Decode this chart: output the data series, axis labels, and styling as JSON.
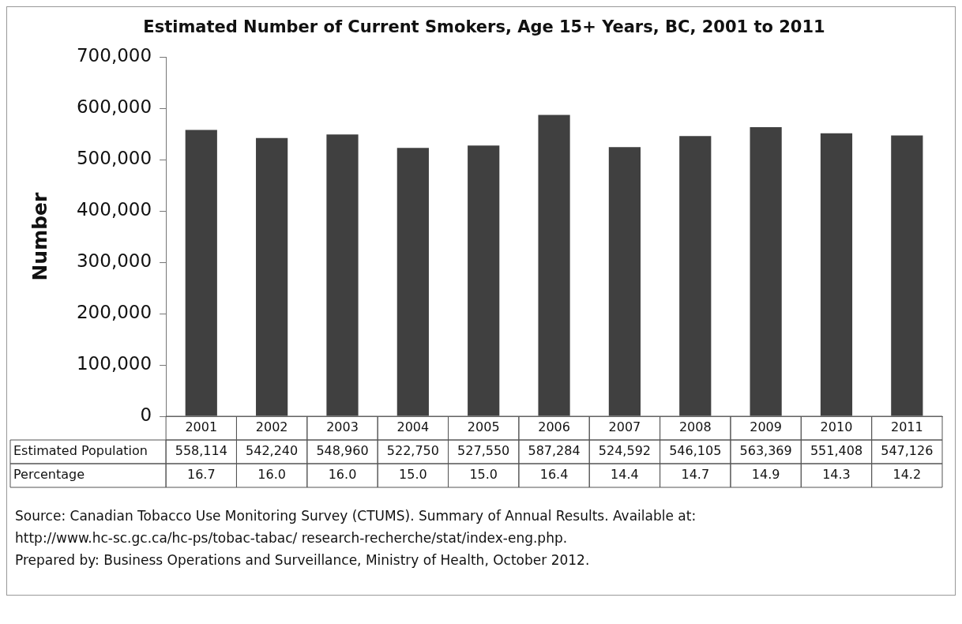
{
  "chart_data": {
    "type": "bar",
    "title": "Estimated Number of Current Smokers, Age 15+ Years, BC, 2001 to 2011",
    "ylabel": "Number",
    "categories": [
      "2001",
      "2002",
      "2003",
      "2004",
      "2005",
      "2006",
      "2007",
      "2008",
      "2009",
      "2010",
      "2011"
    ],
    "series": [
      {
        "name": "Estimated Population",
        "color": "#404040",
        "values": [
          558114,
          542240,
          548960,
          522750,
          527550,
          587284,
          524592,
          546105,
          563369,
          551408,
          547126
        ],
        "value_labels": [
          "558,114",
          "542,240",
          "548,960",
          "522,750",
          "527,550",
          "587,284",
          "524,592",
          "546,105",
          "563,369",
          "551,408",
          "547,126"
        ]
      }
    ],
    "ylim": [
      0,
      700000
    ],
    "yticks": [
      {
        "value": 0,
        "label": "0"
      },
      {
        "value": 100000,
        "label": "100,000"
      },
      {
        "value": 200000,
        "label": "200,000"
      },
      {
        "value": 300000,
        "label": "300,000"
      },
      {
        "value": 400000,
        "label": "400,000"
      },
      {
        "value": 500000,
        "label": "500,000"
      },
      {
        "value": 600000,
        "label": "600,000"
      },
      {
        "value": 700000,
        "label": "700,000"
      }
    ],
    "grid": false,
    "data_labels": true,
    "annotations": [
      "Percentage",
      "16.7",
      "16.0",
      "16.0",
      "15.0",
      "15.0",
      "16.4",
      "14.4",
      "14.7",
      "14.9",
      "14.3",
      "14.2",
      "Source:  Canadian Tobacco Use Monitoring Survey (CTUMS).  Summary of Annual Results. Available at:",
      "http://www.hc-sc.gc.ca/hc-ps/tobac-tabac/ research-recherche/stat/index-eng.php.",
      "Prepared by:  Business Operations and Surveillance, Ministry of Health, October 2012."
    ]
  }
}
